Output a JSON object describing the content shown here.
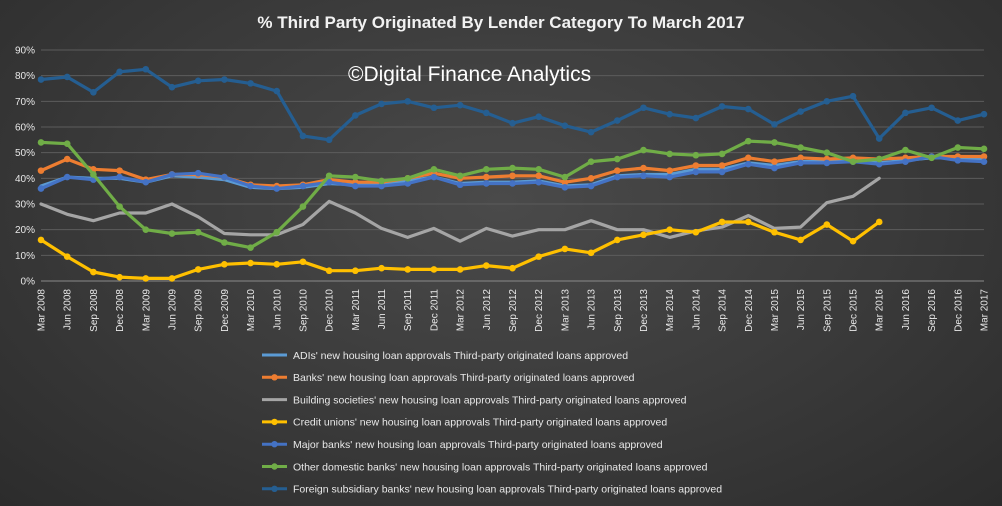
{
  "chart_data": {
    "type": "line",
    "title": "% Third Party Originated By Lender Category To  March 2017",
    "watermark": "©Digital Finance Analytics",
    "xlabel": "",
    "ylabel": "",
    "ylim": [
      0,
      90
    ],
    "yticks": [
      "0%",
      "10%",
      "20%",
      "30%",
      "40%",
      "50%",
      "60%",
      "70%",
      "80%",
      "90%"
    ],
    "grid": true,
    "legend_position": "bottom",
    "categories": [
      "Mar 2008",
      "Jun 2008",
      "Sep 2008",
      "Dec 2008",
      "Mar 2009",
      "Jun 2009",
      "Sep 2009",
      "Dec 2009",
      "Mar 2010",
      "Jun 2010",
      "Sep 2010",
      "Dec 2010",
      "Mar 2011",
      "Jun 2011",
      "Sep 2011",
      "Dec 2011",
      "Mar 2012",
      "Jun 2012",
      "Sep 2012",
      "Dec 2012",
      "Mar 2013",
      "Jun 2013",
      "Sep 2013",
      "Dec 2013",
      "Mar 2014",
      "Jun 2014",
      "Sep 2014",
      "Dec 2014",
      "Mar 2015",
      "Jun 2015",
      "Sep 2015",
      "Dec 2015",
      "Mar 2016",
      "Jun 2016",
      "Sep 2016",
      "Dec 2016",
      "Mar 2017"
    ],
    "series": [
      {
        "name": "ADIs' new housing loan approvals Third-party originated loans approved",
        "color": "#5b9bd5",
        "markers": false,
        "values": [
          37,
          40.5,
          40,
          40,
          38.5,
          41,
          40.5,
          39.5,
          36.5,
          36,
          36.5,
          38,
          37.5,
          37.5,
          39,
          40.5,
          38,
          38.5,
          38.5,
          39,
          37,
          37.5,
          41,
          41.5,
          41.5,
          43.5,
          43.5,
          46,
          45,
          46.5,
          46.5,
          46.5,
          46,
          47,
          48,
          48,
          47.5
        ]
      },
      {
        "name": "Banks' new housing loan approvals Third-party originated loans approved",
        "color": "#ed7d31",
        "markers": true,
        "values": [
          43,
          47.5,
          43.5,
          43,
          39.5,
          41.5,
          41.5,
          40.5,
          37.5,
          37,
          37.5,
          39.5,
          38.5,
          38.5,
          40,
          42,
          40,
          40.5,
          41,
          41,
          38.5,
          40,
          43,
          44,
          43,
          45,
          45,
          48,
          46.5,
          48,
          47.5,
          48,
          47.5,
          48,
          48.5,
          48.5,
          48.5
        ]
      },
      {
        "name": "Building societies' new housing loan approvals Third-party originated loans approved",
        "color": "#a5a5a5",
        "markers": false,
        "values": [
          30,
          26,
          23.5,
          26.5,
          26.5,
          30,
          25,
          18.5,
          18,
          18,
          22,
          31,
          26.5,
          20.5,
          17,
          20.5,
          15.5,
          20.5,
          17.5,
          20,
          20,
          23.5,
          20,
          20,
          17,
          19.5,
          21,
          25.5,
          20.5,
          21,
          30.5,
          33,
          40,
          null,
          null,
          null,
          null
        ]
      },
      {
        "name": "Credit unions' new housing loan approvals Third-party originated loans approved",
        "color": "#ffc000",
        "markers": true,
        "values": [
          16,
          9.5,
          3.5,
          1.5,
          1,
          1,
          4.5,
          6.5,
          7,
          6.5,
          7.5,
          4,
          4,
          5,
          4.5,
          4.5,
          4.5,
          6,
          5,
          9.5,
          12.5,
          11,
          16,
          18,
          20,
          19,
          23,
          23,
          19,
          16,
          22,
          15.5,
          23,
          null,
          null,
          null,
          null
        ]
      },
      {
        "name": "Major banks' new housing loan approvals Third-party originated loans approved",
        "color": "#4472c4",
        "markers": true,
        "values": [
          36,
          40.5,
          39.5,
          40.5,
          38.5,
          41.5,
          42,
          40.5,
          37,
          36,
          37,
          38.5,
          37,
          37,
          38,
          40.5,
          37.5,
          38,
          38,
          38.5,
          36.5,
          37,
          40.5,
          41,
          40.5,
          42.5,
          42.5,
          45.5,
          44,
          46,
          46,
          46.5,
          45.5,
          46.5,
          48.5,
          47,
          46.5
        ]
      },
      {
        "name": "Other domestic banks' new housing loan approvals Third-party originated loans approved",
        "color": "#70ad47",
        "markers": true,
        "values": [
          54,
          53.5,
          41.5,
          29,
          20,
          18.5,
          19,
          15,
          13,
          19,
          29,
          41,
          40.5,
          39,
          40,
          43.5,
          41,
          43.5,
          44,
          43.5,
          40.5,
          46.5,
          47.5,
          51,
          49.5,
          49,
          49.5,
          54.5,
          54,
          52,
          50,
          46.5,
          47.5,
          51,
          48,
          52,
          51.5
        ]
      },
      {
        "name": "Foreign subsidiary banks' new housing loan approvals Third-party originated loans approved",
        "color": "#255e91",
        "markers": true,
        "values": [
          78.5,
          79.5,
          73.5,
          81.5,
          82.5,
          75.5,
          78,
          78.5,
          77,
          74,
          56.5,
          55,
          64.5,
          69,
          70,
          67.5,
          68.5,
          65.5,
          61.5,
          64,
          60.5,
          58,
          62.5,
          67.5,
          65,
          63.5,
          68,
          67,
          61,
          66,
          70,
          72,
          55.5,
          65.5,
          67.5,
          62.5,
          65
        ]
      }
    ]
  }
}
